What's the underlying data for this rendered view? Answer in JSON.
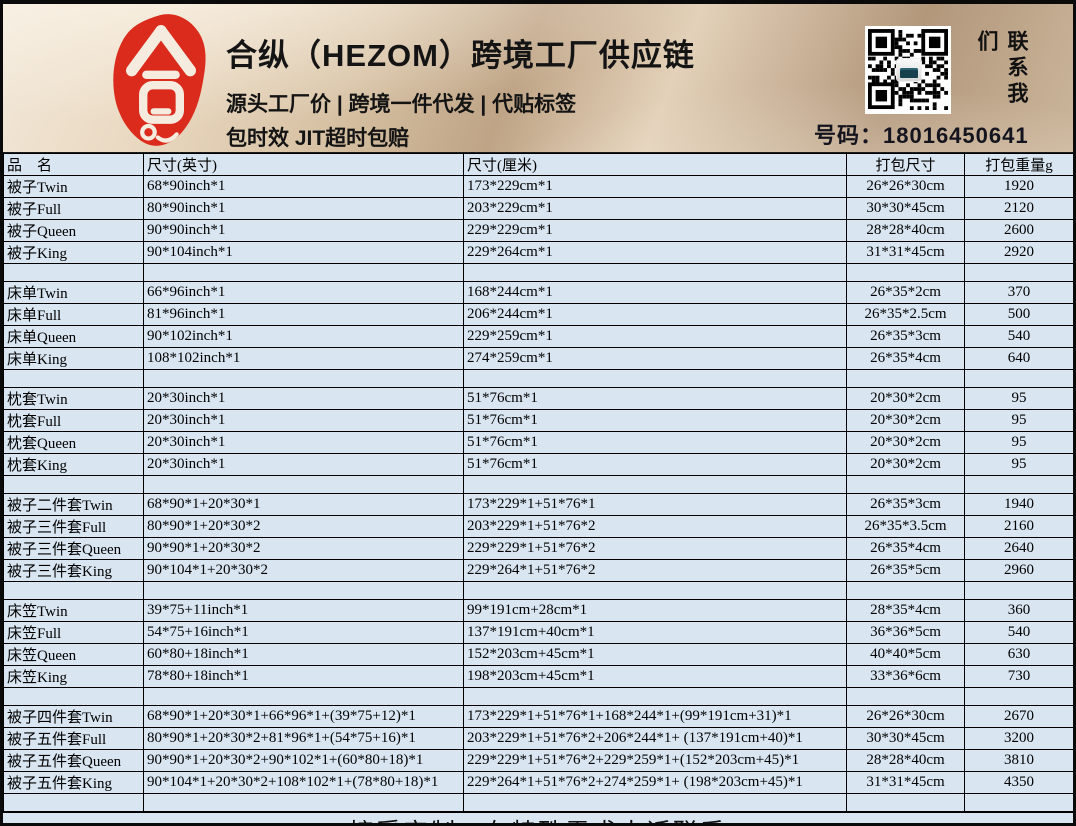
{
  "header": {
    "title": "合纵（HEZOM）跨境工厂供应链",
    "subtitle_line1": "源头工厂价 | 跨境一件代发 | 代贴标签",
    "subtitle_line2": "包时效 JIT超时包赔",
    "logo_char": "合",
    "logo_color": "#da2b1c",
    "qr_icon": "qr-code",
    "contact_label": "联系我们",
    "phone": "号码：18016450641"
  },
  "table": {
    "columns": [
      "品　名",
      "尺寸(英寸)",
      "尺寸(厘米)",
      "打包尺寸",
      "打包重量g"
    ],
    "groups": [
      {
        "rows": [
          [
            "被子Twin",
            "68*90inch*1",
            "173*229cm*1",
            "26*26*30cm",
            "1920"
          ],
          [
            "被子Full",
            "80*90inch*1",
            "203*229cm*1",
            "30*30*45cm",
            "2120"
          ],
          [
            "被子Queen",
            "90*90inch*1",
            "229*229cm*1",
            "28*28*40cm",
            "2600"
          ],
          [
            "被子King",
            "90*104inch*1",
            "229*264cm*1",
            "31*31*45cm",
            "2920"
          ]
        ]
      },
      {
        "rows": [
          [
            "床单Twin",
            "66*96inch*1",
            "168*244cm*1",
            "26*35*2cm",
            "370"
          ],
          [
            "床单Full",
            "81*96inch*1",
            "206*244cm*1",
            "26*35*2.5cm",
            "500"
          ],
          [
            "床单Queen",
            "90*102inch*1",
            "229*259cm*1",
            "26*35*3cm",
            "540"
          ],
          [
            "床单King",
            "108*102inch*1",
            "274*259cm*1",
            "26*35*4cm",
            "640"
          ]
        ]
      },
      {
        "rows": [
          [
            "枕套Twin",
            "20*30inch*1",
            "51*76cm*1",
            "20*30*2cm",
            "95"
          ],
          [
            "枕套Full",
            "20*30inch*1",
            "51*76cm*1",
            "20*30*2cm",
            "95"
          ],
          [
            "枕套Queen",
            "20*30inch*1",
            "51*76cm*1",
            "20*30*2cm",
            "95"
          ],
          [
            "枕套King",
            "20*30inch*1",
            "51*76cm*1",
            "20*30*2cm",
            "95"
          ]
        ]
      },
      {
        "rows": [
          [
            "被子二件套Twin",
            "68*90*1+20*30*1",
            "173*229*1+51*76*1",
            "26*35*3cm",
            "1940"
          ],
          [
            "被子三件套Full",
            "80*90*1+20*30*2",
            "203*229*1+51*76*2",
            "26*35*3.5cm",
            "2160"
          ],
          [
            "被子三件套Queen",
            "90*90*1+20*30*2",
            "229*229*1+51*76*2",
            "26*35*4cm",
            "2640"
          ],
          [
            "被子三件套King",
            "90*104*1+20*30*2",
            "229*264*1+51*76*2",
            "26*35*5cm",
            "2960"
          ]
        ]
      },
      {
        "rows": [
          [
            "床笠Twin",
            "39*75+11inch*1",
            "99*191cm+28cm*1",
            "28*35*4cm",
            "360"
          ],
          [
            "床笠Full",
            "54*75+16inch*1",
            "137*191cm+40cm*1",
            "36*36*5cm",
            "540"
          ],
          [
            "床笠Queen",
            "60*80+18inch*1",
            "152*203cm+45cm*1",
            "40*40*5cm",
            "630"
          ],
          [
            "床笠King",
            "78*80+18inch*1",
            "198*203cm+45cm*1",
            "33*36*6cm",
            "730"
          ]
        ]
      },
      {
        "rows": [
          [
            "被子四件套Twin",
            "68*90*1+20*30*1+66*96*1+(39*75+12)*1",
            "173*229*1+51*76*1+168*244*1+(99*191cm+31)*1",
            "26*26*30cm",
            "2670"
          ],
          [
            "被子五件套Full",
            "80*90*1+20*30*2+81*96*1+(54*75+16)*1",
            "203*229*1+51*76*2+206*244*1+ (137*191cm+40)*1",
            "30*30*45cm",
            "3200"
          ],
          [
            "被子五件套Queen",
            "90*90*1+20*30*2+90*102*1+(60*80+18)*1",
            "229*229*1+51*76*2+229*259*1+(152*203cm+45)*1",
            "28*28*40cm",
            "3810"
          ],
          [
            "被子五件套King",
            "90*104*1+20*30*2+108*102*1+(78*80+18)*1",
            "229*264*1+51*76*2+274*259*1+ (198*203cm+45)*1",
            "31*31*45cm",
            "4350"
          ]
        ]
      }
    ]
  },
  "footer": {
    "text": "接受定制，有特殊需求电话联系"
  }
}
